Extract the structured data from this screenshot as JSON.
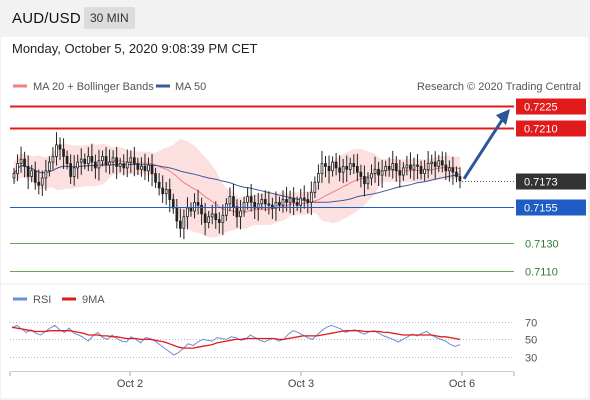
{
  "header": {
    "pair": "AUD/USD",
    "timeframe": "30 MIN"
  },
  "datetime": "Monday, October 5, 2020 9:08:39 PM CET",
  "legend": {
    "ma20": "MA 20 + Bollinger Bands",
    "ma50": "MA 50",
    "credit": "Research © 2020 Trading Central"
  },
  "rsi_legend": {
    "rsi": "RSI",
    "ma9": "9MA"
  },
  "colors": {
    "resistance": "#e11b1b",
    "support_blue": "#1f5cc4",
    "support_green": "#6aa84f",
    "price_tag": "#333333",
    "bollinger": "#f9c5c5",
    "ma20": "#f08080",
    "ma50": "#3a5a9c",
    "arrow": "#2b5797",
    "rsi": "#6a8fd6",
    "rsi_ma": "#e11b1b"
  },
  "chart_data": [
    {
      "type": "candlestick",
      "title": "",
      "x_ticks": [
        "Oct 2",
        "Oct 3",
        "Oct 6"
      ],
      "ylim": [
        0.7104,
        0.7232
      ],
      "levels": [
        {
          "value": 0.7225,
          "label": "0.7225",
          "kind": "resistance"
        },
        {
          "value": 0.721,
          "label": "0.7210",
          "kind": "resistance"
        },
        {
          "value": 0.7173,
          "label": "0.7173",
          "kind": "last-price"
        },
        {
          "value": 0.7155,
          "label": "0.7155",
          "kind": "support"
        },
        {
          "value": 0.713,
          "label": "0.7130",
          "kind": "support-minor"
        },
        {
          "value": 0.711,
          "label": "0.7110",
          "kind": "support-minor"
        }
      ],
      "close": [
        0.7178,
        0.7185,
        0.7188,
        0.7183,
        0.7176,
        0.718,
        0.7172,
        0.717,
        0.7175,
        0.718,
        0.7186,
        0.719,
        0.7198,
        0.7195,
        0.719,
        0.7185,
        0.7176,
        0.7182,
        0.7186,
        0.7188,
        0.7185,
        0.719,
        0.7186,
        0.7182,
        0.7187,
        0.719,
        0.7184,
        0.7186,
        0.7189,
        0.7183,
        0.7185,
        0.7182,
        0.7186,
        0.7189,
        0.7185,
        0.7181,
        0.7183,
        0.718,
        0.7184,
        0.7178,
        0.7172,
        0.7168,
        0.7164,
        0.7167,
        0.716,
        0.7154,
        0.7145,
        0.714,
        0.7148,
        0.7154,
        0.7152,
        0.7158,
        0.7156,
        0.715,
        0.7144,
        0.7148,
        0.715,
        0.7146,
        0.7144,
        0.7149,
        0.7157,
        0.7162,
        0.7155,
        0.7148,
        0.7152,
        0.7158,
        0.7162,
        0.7158,
        0.7154,
        0.7157,
        0.716,
        0.7157,
        0.7156,
        0.7154,
        0.7158,
        0.7156,
        0.716,
        0.7158,
        0.7161,
        0.7158,
        0.7156,
        0.7161,
        0.716,
        0.7158,
        0.7165,
        0.7172,
        0.7178,
        0.7185,
        0.7183,
        0.718,
        0.7186,
        0.7182,
        0.7179,
        0.7183,
        0.7181,
        0.7185,
        0.7183,
        0.7179,
        0.7176,
        0.7171,
        0.7175,
        0.7178,
        0.7181,
        0.7177,
        0.718,
        0.7183,
        0.7181,
        0.7185,
        0.718,
        0.7177,
        0.7182,
        0.7184,
        0.7181,
        0.7184,
        0.7183,
        0.7178,
        0.7181,
        0.7185,
        0.7186,
        0.7183,
        0.7187,
        0.7184,
        0.718,
        0.7182,
        0.7179,
        0.7176,
        0.7173
      ],
      "annotation": "arrow pointing up toward 0.7225"
    },
    {
      "type": "line",
      "title": "",
      "series": [
        {
          "name": "RSI",
          "values": [
            63,
            66,
            62,
            58,
            61,
            57,
            55,
            59,
            63,
            66,
            61,
            58,
            63,
            57,
            55,
            52,
            48,
            54,
            58,
            52,
            50,
            55,
            51,
            48,
            47,
            53,
            50,
            46,
            52,
            51,
            48,
            44,
            40,
            36,
            32,
            35,
            40,
            45,
            43,
            47,
            50,
            49,
            48,
            52,
            51,
            50,
            53,
            52,
            49,
            50,
            55,
            52,
            49,
            47,
            50,
            51,
            48,
            50,
            56,
            60,
            58,
            55,
            52,
            50,
            55,
            60,
            64,
            66,
            64,
            62,
            58,
            60,
            61,
            58,
            56,
            59,
            60,
            57,
            54,
            52,
            50,
            47,
            50,
            53,
            56,
            54,
            57,
            59,
            55,
            52,
            50,
            48,
            44,
            42,
            44
          ]
        },
        {
          "name": "9MA",
          "values": [
            64,
            63,
            62,
            61,
            60,
            59,
            59,
            59,
            60,
            60,
            60,
            60,
            60,
            59,
            58,
            57,
            55,
            55,
            55,
            54,
            54,
            53,
            53,
            52,
            51,
            51,
            51,
            50,
            50,
            50,
            49,
            48,
            47,
            45,
            43,
            41,
            40,
            40,
            40,
            41,
            42,
            43,
            44,
            46,
            47,
            48,
            49,
            50,
            50,
            51,
            51,
            51,
            51,
            51,
            51,
            51,
            50,
            50,
            51,
            52,
            53,
            54,
            54,
            54,
            54,
            55,
            56,
            57,
            58,
            59,
            60,
            60,
            60,
            60,
            59,
            59,
            59,
            59,
            58,
            58,
            57,
            56,
            55,
            55,
            55,
            55,
            55,
            55,
            55,
            54,
            53,
            53,
            52,
            51,
            50
          ]
        }
      ],
      "y_ticks": [
        70,
        50,
        30
      ],
      "ylim": [
        24,
        78
      ]
    }
  ]
}
